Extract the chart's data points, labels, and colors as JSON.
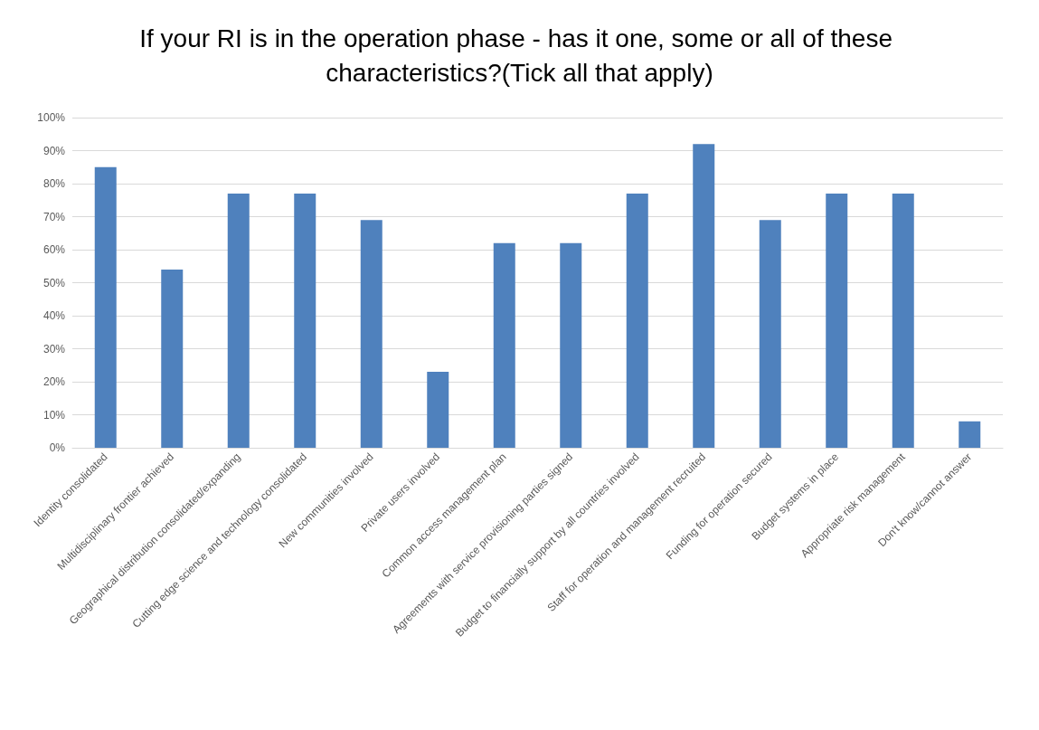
{
  "chart_data": {
    "type": "bar",
    "title": "If your RI is in the operation phase - has it one, some or all of these characteristics?(Tick all that apply)",
    "categories": [
      "Identity consolidated",
      "Multidisciplinary frontier achieved",
      "Geographical distribution consolidated/expanding",
      "Cutting edge science and technology consolidated",
      "New communities involved",
      "Private users involved",
      "Common access management plan",
      "Agreements with service provisioning parties signed",
      "Budget to financially support by all countries involved",
      "Staff for operation and management recruited",
      "Funding for operation secured",
      "Budget systems in place",
      "Appropriate risk management",
      "Don't know/cannot answer"
    ],
    "values": [
      85,
      54,
      77,
      77,
      69,
      23,
      62,
      62,
      77,
      92,
      69,
      77,
      77,
      8
    ],
    "color": "#4f81bd",
    "ylim": [
      0,
      100
    ],
    "yticks": [
      {
        "value": 0,
        "label": "0%"
      },
      {
        "value": 10,
        "label": "10%"
      },
      {
        "value": 20,
        "label": "20%"
      },
      {
        "value": 30,
        "label": "30%"
      },
      {
        "value": 40,
        "label": "40%"
      },
      {
        "value": 50,
        "label": "50%"
      },
      {
        "value": 60,
        "label": "60%"
      },
      {
        "value": 70,
        "label": "70%"
      },
      {
        "value": 80,
        "label": "80%"
      },
      {
        "value": 90,
        "label": "90%"
      },
      {
        "value": 100,
        "label": "100%"
      }
    ],
    "grid": "y"
  }
}
